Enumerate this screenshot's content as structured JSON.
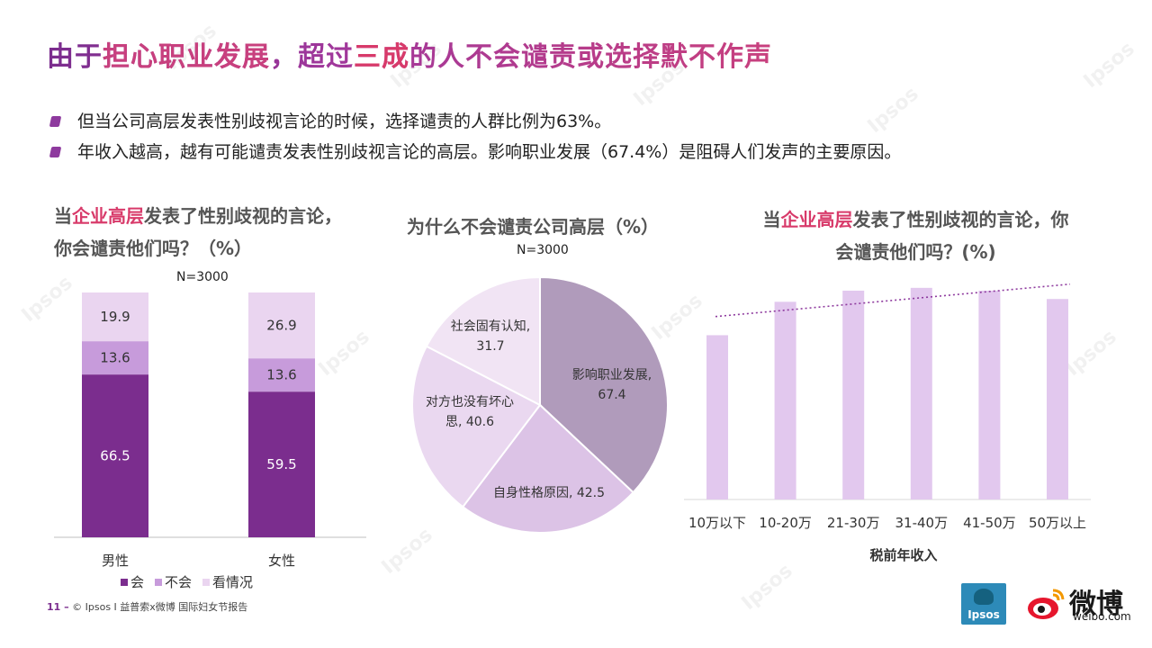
{
  "page": {
    "title_parts": [
      "由于",
      "担心职业发展",
      "，超过",
      "三成",
      "的人不会谴责或选择默不作声"
    ],
    "bullets": [
      "但当公司高层发表性别歧视言论的时候，选择谴责的人群比例为63%。",
      "年收入越高，越有可能谴责发表性别歧视言论的高层。影响职业发展（67.4%）是阻碍人们发声的主要原因。"
    ],
    "footer": {
      "number": "11 –",
      "text": "© Ipsos I 益普索x微博 国际妇女节报告"
    },
    "logos": {
      "ipsos": "Ipsos",
      "weibo": "微博",
      "weibo_url": "weibo.com"
    },
    "watermark": "Ipsos"
  },
  "chart_left": {
    "title_prefix": "当",
    "title_highlight": "企业高层",
    "title_suffix": "发表了性别歧视的言论，你会谴责他们吗？（%）",
    "n_label": "N=3000"
  },
  "chart_middle": {
    "title": "为什么不会谴责公司高层（%）",
    "n_label": "N=3000"
  },
  "chart_right": {
    "title_prefix": "当",
    "title_highlight": "企业高层",
    "title_suffix": "发表了性别歧视的言论，你会谴责他们吗？(%)",
    "x_axis_title": "税前年收入"
  },
  "chart_data": [
    {
      "type": "bar",
      "stacked": true,
      "categories": [
        "男性",
        "女性"
      ],
      "series": [
        {
          "name": "会",
          "values": [
            66.5,
            59.5
          ],
          "color": "#7b2d8e"
        },
        {
          "name": "不会",
          "values": [
            13.6,
            13.6
          ],
          "color": "#c79bdb"
        },
        {
          "name": "看情况",
          "values": [
            19.9,
            26.9
          ],
          "color": "#ead5f0"
        }
      ],
      "legend_position": "bottom",
      "ylim": [
        0,
        100
      ]
    },
    {
      "type": "pie",
      "labels": [
        "影响职业发展",
        "自身性格原因",
        "对方也没有坏心思",
        "社会固有认知"
      ],
      "display_labels": [
        "影响职业发展,\n67.4",
        "自身性格原因, 42.5",
        "对方也没有坏心\n思, 40.6",
        "社会固有认知,\n31.7"
      ],
      "values": [
        67.4,
        42.5,
        40.6,
        31.7
      ],
      "colors": [
        "#b09bbb",
        "#dcc3e6",
        "#ead8f0",
        "#f1e4f4"
      ]
    },
    {
      "type": "bar",
      "categories": [
        "10万以下",
        "10-20万",
        "21-30万",
        "31-40万",
        "41-50万",
        "50万以上"
      ],
      "values": [
        59,
        71,
        75,
        76,
        75,
        72
      ],
      "color": "#e2c8ee",
      "ylim": [
        0,
        85
      ],
      "trendline": true,
      "trend_color": "#8e3a9e",
      "xlabel": "税前年收入",
      "grid": false
    }
  ]
}
